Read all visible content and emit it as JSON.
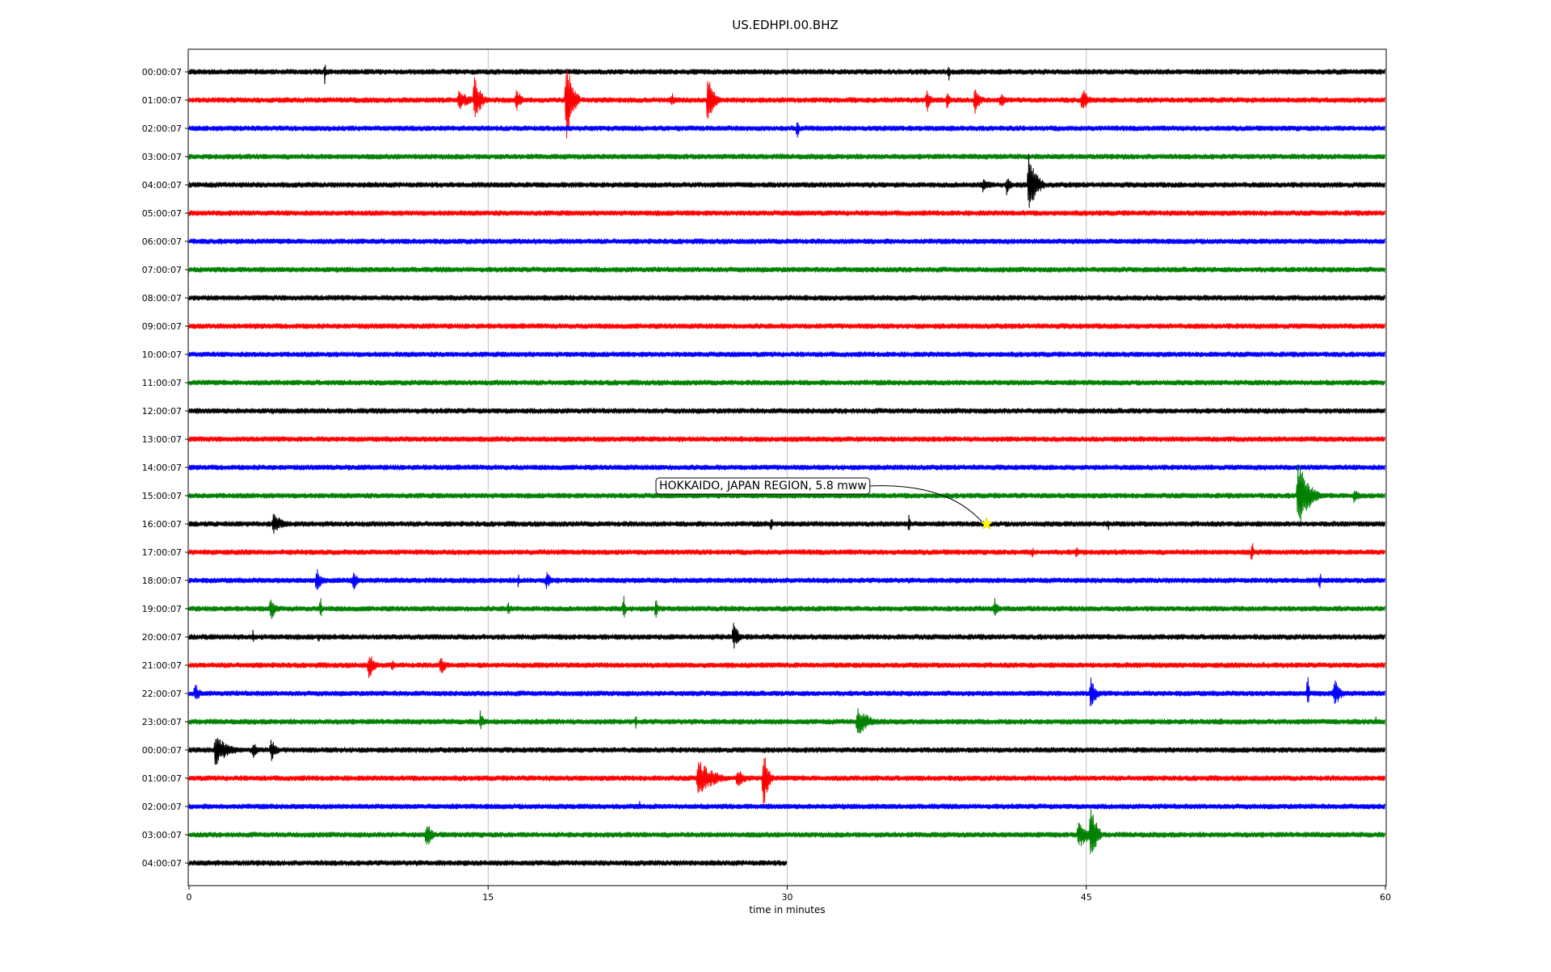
{
  "chart_data": {
    "type": "line",
    "title": "US.EDHPI.00.BHZ",
    "xlabel": "time in minutes",
    "ylabel": "",
    "xlim": [
      0,
      60
    ],
    "x_ticks": [
      0,
      15,
      30,
      45,
      60
    ],
    "x_tick_labels": [
      "0",
      "15",
      "30",
      "45",
      "60"
    ],
    "grid": "vertical",
    "row_colors": [
      "#000000",
      "#ff0000",
      "#0000ff",
      "#008000"
    ],
    "rows": [
      {
        "label": "00:00:07",
        "end": 60,
        "events": [
          {
            "t": 6.8,
            "a": 0.8
          },
          {
            "t": 38.1,
            "a": 0.6
          }
        ]
      },
      {
        "label": "01:00:07",
        "end": 60,
        "events": [
          {
            "t": 13.5,
            "a": 0.6,
            "d": 1.2
          },
          {
            "t": 14.3,
            "a": 1.6,
            "d": 0.6
          },
          {
            "t": 16.4,
            "a": 0.8,
            "d": 0.5
          },
          {
            "t": 18.9,
            "a": 2.5,
            "d": 0.7
          },
          {
            "t": 24.2,
            "a": 0.5,
            "d": 0.4
          },
          {
            "t": 26.0,
            "a": 1.8,
            "d": 0.6
          },
          {
            "t": 37.0,
            "a": 0.8,
            "d": 0.4
          },
          {
            "t": 38.0,
            "a": 0.6,
            "d": 0.3
          },
          {
            "t": 39.4,
            "a": 1.0,
            "d": 0.5
          },
          {
            "t": 40.7,
            "a": 0.6,
            "d": 0.4
          },
          {
            "t": 44.8,
            "a": 0.8,
            "d": 0.6
          }
        ]
      },
      {
        "label": "02:00:07",
        "end": 60,
        "events": [
          {
            "t": 30.5,
            "a": 1.1
          }
        ]
      },
      {
        "label": "03:00:07",
        "end": 60,
        "events": []
      },
      {
        "label": "04:00:07",
        "end": 60,
        "events": [
          {
            "t": 39.8,
            "a": 0.4,
            "d": 1.0
          },
          {
            "t": 41.0,
            "a": 0.6,
            "d": 0.5
          },
          {
            "t": 42.1,
            "a": 1.8,
            "d": 0.8
          }
        ]
      },
      {
        "label": "05:00:07",
        "end": 60,
        "events": []
      },
      {
        "label": "06:00:07",
        "end": 60,
        "events": []
      },
      {
        "label": "07:00:07",
        "end": 60,
        "events": []
      },
      {
        "label": "08:00:07",
        "end": 60,
        "events": []
      },
      {
        "label": "09:00:07",
        "end": 60,
        "events": []
      },
      {
        "label": "10:00:07",
        "end": 60,
        "events": []
      },
      {
        "label": "11:00:07",
        "end": 60,
        "events": []
      },
      {
        "label": "12:00:07",
        "end": 60,
        "events": []
      },
      {
        "label": "13:00:07",
        "end": 60,
        "events": []
      },
      {
        "label": "14:00:07",
        "end": 60,
        "events": []
      },
      {
        "label": "15:00:07",
        "end": 60,
        "events": [
          {
            "t": 55.6,
            "a": 2.0,
            "d": 1.2
          },
          {
            "t": 58.4,
            "a": 0.5,
            "d": 0.6
          }
        ]
      },
      {
        "label": "16:00:07",
        "end": 60,
        "events": [
          {
            "t": 4.2,
            "a": 0.7,
            "d": 1.0
          },
          {
            "t": 29.2,
            "a": 0.6
          },
          {
            "t": 36.1,
            "a": 0.9
          },
          {
            "t": 46.1,
            "a": 0.4
          }
        ]
      },
      {
        "label": "17:00:07",
        "end": 60,
        "events": [
          {
            "t": 42.3,
            "a": 0.5
          },
          {
            "t": 44.5,
            "a": 0.7
          },
          {
            "t": 53.3,
            "a": 0.9
          }
        ]
      },
      {
        "label": "18:00:07",
        "end": 60,
        "events": [
          {
            "t": 6.4,
            "a": 0.8,
            "d": 0.5
          },
          {
            "t": 8.2,
            "a": 0.7,
            "d": 0.5
          },
          {
            "t": 16.5,
            "a": 0.5
          },
          {
            "t": 17.9,
            "a": 0.6,
            "d": 0.5
          },
          {
            "t": 56.7,
            "a": 0.7
          }
        ]
      },
      {
        "label": "19:00:07",
        "end": 60,
        "events": [
          {
            "t": 4.1,
            "a": 0.8,
            "d": 0.5
          },
          {
            "t": 6.6,
            "a": 0.7
          },
          {
            "t": 16.0,
            "a": 0.7
          },
          {
            "t": 21.8,
            "a": 1.1
          },
          {
            "t": 23.4,
            "a": 1.2
          },
          {
            "t": 40.4,
            "a": 0.6,
            "d": 0.5
          }
        ]
      },
      {
        "label": "20:00:07",
        "end": 60,
        "events": [
          {
            "t": 3.2,
            "a": 0.5
          },
          {
            "t": 6.5,
            "a": 0.4
          },
          {
            "t": 27.3,
            "a": 0.8,
            "d": 0.6
          }
        ]
      },
      {
        "label": "21:00:07",
        "end": 60,
        "events": [
          {
            "t": 9.0,
            "a": 0.9,
            "d": 0.6
          },
          {
            "t": 10.2,
            "a": 0.5
          },
          {
            "t": 12.6,
            "a": 0.6,
            "d": 0.6
          },
          {
            "t": 53.9,
            "a": 0.3
          }
        ]
      },
      {
        "label": "22:00:07",
        "end": 60,
        "events": [
          {
            "t": 0.3,
            "a": 0.6,
            "d": 0.5
          },
          {
            "t": 45.2,
            "a": 1.0,
            "d": 0.6
          },
          {
            "t": 56.1,
            "a": 1.2
          },
          {
            "t": 57.4,
            "a": 0.9,
            "d": 0.7
          }
        ]
      },
      {
        "label": "23:00:07",
        "end": 60,
        "events": [
          {
            "t": 14.6,
            "a": 0.6,
            "d": 0.4
          },
          {
            "t": 22.4,
            "a": 0.5
          },
          {
            "t": 33.5,
            "a": 0.8,
            "d": 1.4
          },
          {
            "t": 51.7,
            "a": 0.4
          },
          {
            "t": 59.5,
            "a": 0.4
          }
        ]
      },
      {
        "label": "00:00:07",
        "end": 60,
        "events": [
          {
            "t": 1.3,
            "a": 0.9,
            "d": 1.4
          },
          {
            "t": 3.2,
            "a": 0.5,
            "d": 0.6
          },
          {
            "t": 4.1,
            "a": 0.7,
            "d": 0.6
          }
        ]
      },
      {
        "label": "01:00:07",
        "end": 60,
        "events": [
          {
            "t": 25.5,
            "a": 1.1,
            "d": 1.6
          },
          {
            "t": 27.5,
            "a": 0.6,
            "d": 0.8
          },
          {
            "t": 28.8,
            "a": 1.8,
            "d": 0.5
          }
        ]
      },
      {
        "label": "02:00:07",
        "end": 60,
        "events": [
          {
            "t": 19.8,
            "a": 0.3
          },
          {
            "t": 22.6,
            "a": 0.3
          }
        ]
      },
      {
        "label": "03:00:07",
        "end": 60,
        "events": [
          {
            "t": 11.9,
            "a": 0.8,
            "d": 0.6
          },
          {
            "t": 44.6,
            "a": 0.8,
            "d": 1.2
          },
          {
            "t": 45.2,
            "a": 2.0,
            "d": 0.6
          }
        ]
      },
      {
        "label": "04:00:07",
        "end": 30,
        "events": []
      }
    ],
    "annotations": [
      {
        "text": "HOKKAIDO, JAPAN REGION, 5.8 mww",
        "row": 16,
        "x": 40.0,
        "marker": "star",
        "marker_color": "#ffff00"
      }
    ]
  }
}
